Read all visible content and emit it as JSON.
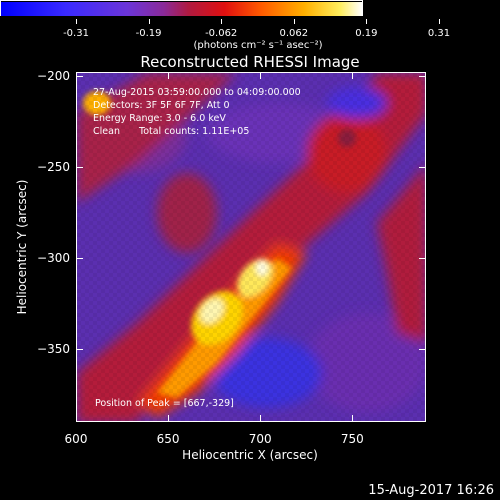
{
  "colorbar": {
    "tick_labels": [
      "-0.31",
      "-0.19",
      "-0.062",
      "0.062",
      "0.19",
      "0.31"
    ],
    "units": "(photons cm⁻² s⁻¹ asec⁻²)",
    "colormap": [
      "#0000ff",
      "#3a2aff",
      "#6b35d8",
      "#8a2a9a",
      "#b01a40",
      "#e01010",
      "#ff5a00",
      "#ffb000",
      "#ffef60",
      "#ffffff"
    ]
  },
  "title": "Reconstructed RHESSI Image",
  "info": {
    "time_range": "27-Aug-2015 03:59:00.000 to 04:09:00.000",
    "detectors": "Detectors: 3F 5F 6F 7F, Att 0",
    "energy": "Energy Range: 3.0 - 6.0 keV",
    "method": "Clean",
    "counts": "Total counts: 1.11E+05",
    "peak": "Position of Peak = [667,-329]"
  },
  "axes": {
    "xlabel": "Heliocentric X (arcsec)",
    "ylabel": "Heliocentric Y (arcsec)",
    "xticks": [
      "600",
      "650",
      "700",
      "750"
    ],
    "yticks": [
      "-200",
      "-250",
      "-300",
      "-350"
    ],
    "xlim": [
      600,
      790
    ],
    "ylim": [
      -390,
      -198
    ]
  },
  "footer": {
    "date": "15-Aug-2017 16:26"
  }
}
